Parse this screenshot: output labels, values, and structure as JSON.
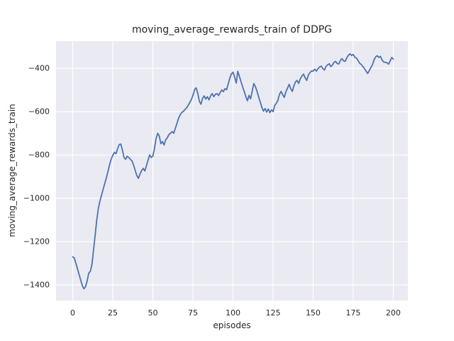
{
  "chart_data": {
    "type": "line",
    "title": "moving_average_rewards_train of DDPG",
    "xlabel": "episodes",
    "ylabel": "moving_average_rewards_train",
    "x_ticks": [
      0,
      25,
      50,
      75,
      100,
      125,
      150,
      175,
      200
    ],
    "x_tick_labels": [
      "0",
      "25",
      "50",
      "75",
      "100",
      "125",
      "150",
      "175",
      "200"
    ],
    "y_ticks": [
      -400,
      -600,
      -800,
      -1000,
      -1200,
      -1400
    ],
    "y_tick_labels": [
      "−400",
      "−600",
      "−800",
      "−1000",
      "−1200",
      "−1400"
    ],
    "xlim": [
      -10.4,
      209.1
    ],
    "ylim": [
      -1472,
      -275
    ],
    "grid": true,
    "legend_position": "none",
    "colors": {
      "line": "#4c72b0",
      "plot_background": "#eaeaf2",
      "grid": "#ffffff",
      "text": "#262626",
      "figure_background": "#ffffff"
    },
    "series": [
      {
        "name": "moving_average_rewards_train",
        "x": [
          0,
          1,
          2,
          3,
          4,
          5,
          6,
          7,
          8,
          9,
          10,
          11,
          12,
          13,
          14,
          15,
          16,
          17,
          18,
          19,
          20,
          21,
          22,
          23,
          24,
          25,
          26,
          27,
          28,
          29,
          30,
          31,
          32,
          33,
          34,
          35,
          36,
          37,
          38,
          39,
          40,
          41,
          42,
          43,
          44,
          45,
          46,
          47,
          48,
          49,
          50,
          51,
          52,
          53,
          54,
          55,
          56,
          57,
          58,
          59,
          60,
          61,
          62,
          63,
          64,
          65,
          66,
          67,
          68,
          69,
          70,
          71,
          72,
          73,
          74,
          75,
          76,
          77,
          78,
          79,
          80,
          81,
          82,
          83,
          84,
          85,
          86,
          87,
          88,
          89,
          90,
          91,
          92,
          93,
          94,
          95,
          96,
          97,
          98,
          99,
          100,
          101,
          102,
          103,
          104,
          105,
          106,
          107,
          108,
          109,
          110,
          111,
          112,
          113,
          114,
          115,
          116,
          117,
          118,
          119,
          120,
          121,
          122,
          123,
          124,
          125,
          126,
          127,
          128,
          129,
          130,
          131,
          132,
          133,
          134,
          135,
          136,
          137,
          138,
          139,
          140,
          141,
          142,
          143,
          144,
          145,
          146,
          147,
          148,
          149,
          150,
          151,
          152,
          153,
          154,
          155,
          156,
          157,
          158,
          159,
          160,
          161,
          162,
          163,
          164,
          165,
          166,
          167,
          168,
          169,
          170,
          171,
          172,
          173,
          174,
          175,
          176,
          177,
          178,
          179,
          180,
          181,
          182,
          183,
          184,
          185,
          186,
          187,
          188,
          189,
          190,
          191,
          192,
          193,
          194,
          195,
          196,
          197,
          198,
          199,
          200
        ],
        "y": [
          -1270,
          -1276,
          -1300,
          -1326,
          -1352,
          -1378,
          -1404,
          -1418,
          -1408,
          -1382,
          -1346,
          -1337,
          -1305,
          -1238,
          -1172,
          -1100,
          -1046,
          -1012,
          -985,
          -958,
          -932,
          -905,
          -876,
          -845,
          -820,
          -802,
          -788,
          -794,
          -772,
          -752,
          -750,
          -778,
          -812,
          -820,
          -806,
          -812,
          -820,
          -828,
          -848,
          -872,
          -895,
          -908,
          -888,
          -872,
          -862,
          -874,
          -850,
          -824,
          -800,
          -812,
          -805,
          -772,
          -725,
          -700,
          -712,
          -748,
          -738,
          -754,
          -730,
          -721,
          -706,
          -700,
          -692,
          -700,
          -678,
          -655,
          -632,
          -615,
          -604,
          -599,
          -591,
          -583,
          -572,
          -558,
          -545,
          -525,
          -500,
          -490,
          -515,
          -552,
          -566,
          -539,
          -528,
          -542,
          -531,
          -546,
          -528,
          -517,
          -531,
          -520,
          -517,
          -526,
          -512,
          -500,
          -508,
          -494,
          -499,
          -473,
          -446,
          -426,
          -418,
          -440,
          -468,
          -414,
          -438,
          -462,
          -486,
          -507,
          -530,
          -550,
          -525,
          -541,
          -505,
          -470,
          -485,
          -507,
          -532,
          -556,
          -580,
          -598,
          -586,
          -602,
          -588,
          -605,
          -592,
          -600,
          -572,
          -562,
          -548,
          -520,
          -507,
          -522,
          -534,
          -508,
          -492,
          -474,
          -494,
          -507,
          -481,
          -463,
          -456,
          -470,
          -448,
          -436,
          -427,
          -444,
          -456,
          -431,
          -420,
          -412,
          -413,
          -404,
          -413,
          -402,
          -394,
          -390,
          -401,
          -408,
          -392,
          -384,
          -379,
          -392,
          -385,
          -373,
          -368,
          -378,
          -380,
          -364,
          -355,
          -366,
          -368,
          -351,
          -340,
          -333,
          -341,
          -336,
          -349,
          -353,
          -364,
          -377,
          -382,
          -392,
          -401,
          -413,
          -424,
          -411,
          -397,
          -383,
          -361,
          -347,
          -342,
          -350,
          -345,
          -362,
          -371,
          -372,
          -374,
          -381,
          -367,
          -350,
          -357
        ]
      }
    ]
  }
}
